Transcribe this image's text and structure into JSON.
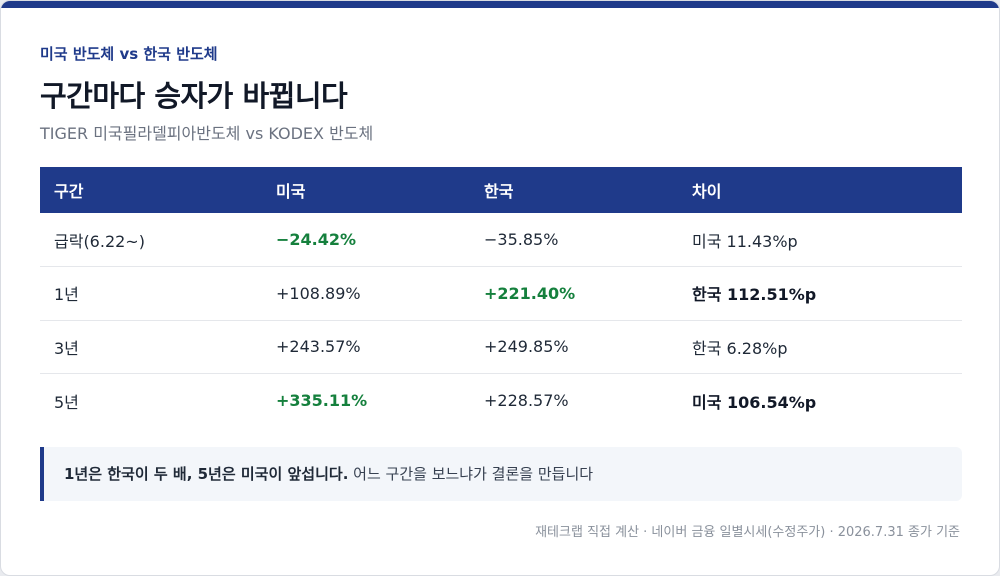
{
  "header": {
    "eyebrow": "미국 반도체 vs 한국 반도체",
    "title": "구간마다 승자가 바뀝니다",
    "subtitle": "TIGER 미국필라델피아반도체 vs KODEX 반도체"
  },
  "table": {
    "columns": [
      "구간",
      "미국",
      "한국",
      "차이"
    ],
    "rows": [
      {
        "period": "급락(6.22~)",
        "us": "−24.42%",
        "kr": "−35.85%",
        "diff": "미국 11.43%p"
      },
      {
        "period": "1년",
        "us": "+108.89%",
        "kr": "+221.40%",
        "diff": "한국 112.51%p"
      },
      {
        "period": "3년",
        "us": "+243.57%",
        "kr": "+249.85%",
        "diff": "한국 6.28%p"
      },
      {
        "period": "5년",
        "us": "+335.11%",
        "kr": "+228.57%",
        "diff": "미국 106.54%p"
      }
    ]
  },
  "note": {
    "bold": "1년은 한국이 두 배, 5년은 미국이 앞섭니다.",
    "text": " 어느 구간을 보느냐가 결론을 만듭니다"
  },
  "source": "재테크랩 직접 계산 · 네이버 금융 일별시세(수정주가) · 2026.7.31 종가 기준",
  "colors": {
    "accent": "#1f3a8a",
    "positive_highlight": "#15803d"
  }
}
